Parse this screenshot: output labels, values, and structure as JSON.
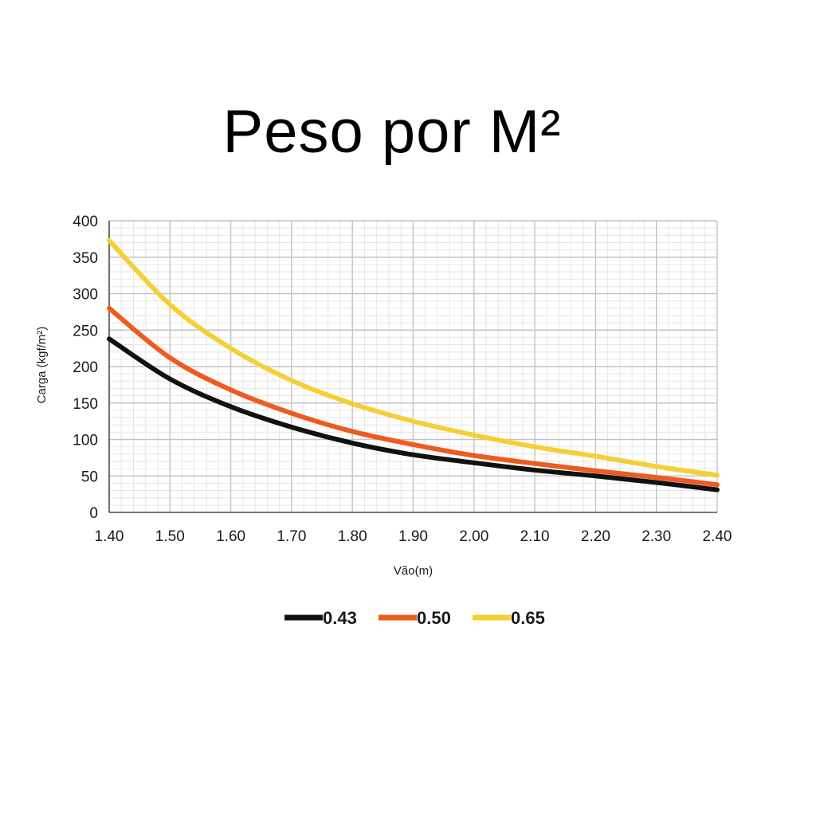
{
  "title": "Peso por M²",
  "chart_data": {
    "type": "line",
    "title": "Peso por M²",
    "xlabel": "Vão(m)",
    "ylabel": "Carga (kgf/m²)",
    "xlim": [
      1.4,
      2.4
    ],
    "ylim": [
      0,
      400
    ],
    "x_ticks": [
      "1.40",
      "1.50",
      "1.60",
      "1.70",
      "1.80",
      "1.90",
      "2.00",
      "2.10",
      "2.20",
      "2.30",
      "2.40"
    ],
    "y_ticks": [
      "0",
      "50",
      "100",
      "150",
      "200",
      "250",
      "300",
      "350",
      "400"
    ],
    "grid": true,
    "legend_position": "bottom",
    "x": [
      1.4,
      1.5,
      1.6,
      1.7,
      1.8,
      1.9,
      2.0,
      2.1,
      2.2,
      2.3,
      2.4
    ],
    "series": [
      {
        "name": "0.43",
        "color": "#111111",
        "values": [
          238,
          183,
          145,
          117,
          95,
          79,
          68,
          58,
          50,
          41,
          31
        ]
      },
      {
        "name": "0.50",
        "color": "#ee5a1f",
        "values": [
          280,
          212,
          168,
          136,
          111,
          93,
          78,
          67,
          57,
          48,
          38
        ]
      },
      {
        "name": "0.65",
        "color": "#f4d037",
        "values": [
          373,
          285,
          225,
          181,
          149,
          125,
          106,
          90,
          77,
          63,
          51
        ]
      }
    ]
  }
}
